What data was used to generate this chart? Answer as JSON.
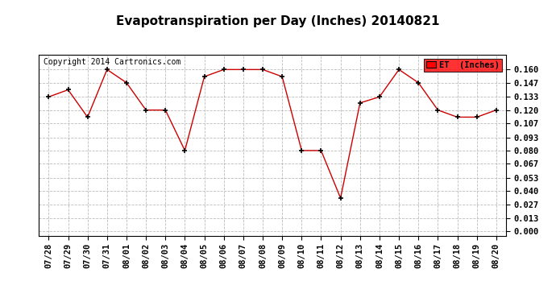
{
  "title": "Evapotranspiration per Day (Inches) 20140821",
  "copyright_text": "Copyright 2014 Cartronics.com",
  "legend_label": "ET  (Inches)",
  "dates": [
    "07/28",
    "07/29",
    "07/30",
    "07/31",
    "08/01",
    "08/02",
    "08/03",
    "08/04",
    "08/05",
    "08/06",
    "08/07",
    "08/08",
    "08/09",
    "08/10",
    "08/11",
    "08/12",
    "08/13",
    "08/14",
    "08/15",
    "08/16",
    "08/17",
    "08/18",
    "08/19",
    "08/20"
  ],
  "values": [
    0.133,
    0.14,
    0.113,
    0.16,
    0.147,
    0.12,
    0.12,
    0.08,
    0.153,
    0.16,
    0.16,
    0.16,
    0.153,
    0.08,
    0.08,
    0.033,
    0.127,
    0.133,
    0.16,
    0.147,
    0.12,
    0.113,
    0.113,
    0.12
  ],
  "yticks": [
    0.0,
    0.013,
    0.027,
    0.04,
    0.053,
    0.067,
    0.08,
    0.093,
    0.107,
    0.12,
    0.133,
    0.147,
    0.16
  ],
  "ylim": [
    -0.004,
    0.175
  ],
  "line_color": "#cc0000",
  "marker_color": "#000000",
  "legend_bg": "#ff0000",
  "legend_text_color": "#000000",
  "background_color": "#ffffff",
  "grid_color": "#bbbbbb",
  "title_fontsize": 11,
  "copyright_fontsize": 7,
  "tick_fontsize": 7.5,
  "legend_fontsize": 7.5
}
